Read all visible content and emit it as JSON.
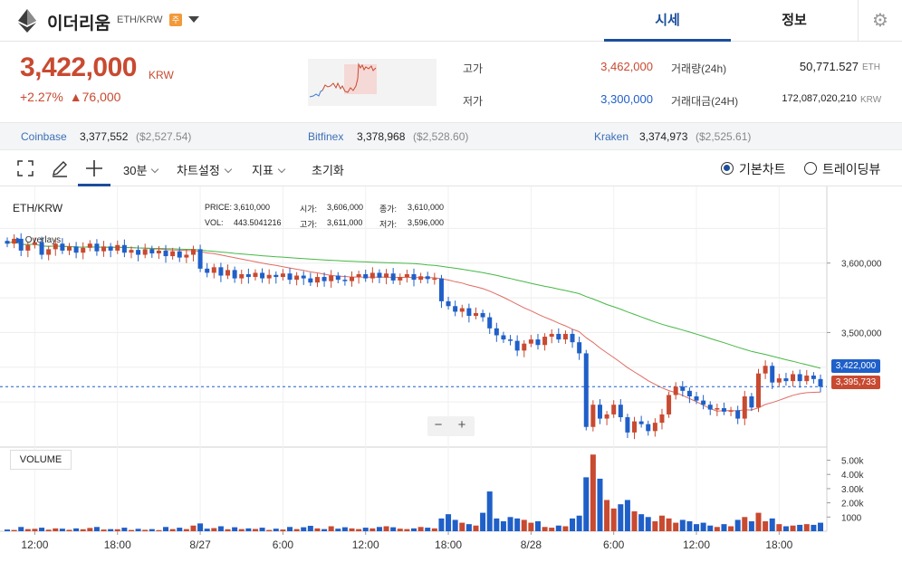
{
  "header": {
    "coin_name": "이더리움",
    "pair": "ETH/KRW",
    "badge": "주",
    "tabs": [
      {
        "label": "시세"
      },
      {
        "label": "정보"
      }
    ]
  },
  "summary": {
    "price": "3,422,000",
    "price_unit": "KRW",
    "change_pct": "+2.27%",
    "change_abs": "▲76,000",
    "high_label": "고가",
    "high_value": "3,462,000",
    "low_label": "저가",
    "low_value": "3,300,000",
    "volume_label": "거래량(24h)",
    "volume_value": "50,771.527",
    "volume_unit": "ETH",
    "amount_label": "거래대금(24H)",
    "amount_value": "172,087,020,210",
    "amount_unit": "KRW"
  },
  "exchanges": [
    {
      "name": "Coinbase",
      "krw": "3,377,552",
      "usd": "($2,527.54)"
    },
    {
      "name": "Bitfinex",
      "krw": "3,378,968",
      "usd": "($2,528.60)"
    },
    {
      "name": "Kraken",
      "krw": "3,374,973",
      "usd": "($2,525.61)"
    }
  ],
  "toolbar": {
    "interval": "30분",
    "chart_settings": "차트설정",
    "indicators": "지표",
    "reset": "초기화",
    "basic_chart": "기본차트",
    "tradingview": "트레이딩뷰"
  },
  "icons": {
    "logo": "ethereum-icon",
    "settings": "gear-icon",
    "fullscreen": "fullscreen-icon",
    "draw": "pencil-icon",
    "crosshair": "crosshair-icon"
  },
  "colors": {
    "up": "#c84a31",
    "down": "#1f5fc8",
    "accent": "#1b4e9b",
    "ma_short": "#e06b63",
    "ma_long": "#45b845"
  },
  "chart_legend": {
    "pair": "ETH/KRW",
    "overlays": "Overlays",
    "price_label": "PRICE:",
    "price_value": "3,610,000",
    "vol_label": "VOL:",
    "vol_value": "443.5041216",
    "open_label": "시가:",
    "open_value": "3,606,000",
    "close_label": "종가:",
    "close_value": "3,610,000",
    "high_label": "고가:",
    "high_value": "3,611,000",
    "low_label": "저가:",
    "low_value": "3,596,000",
    "zoom_out": "−",
    "zoom_in": "+",
    "volume": "VOLUME",
    "current_price": "3,422,000",
    "ma_price": "3,395,733"
  },
  "chart_data": {
    "type": "candlestick",
    "price_ticks": [
      "3,600,000",
      "3,500,000"
    ],
    "volume_ticks": [
      "5.00k",
      "4.00k",
      "3.00k",
      "2.00k",
      "1000"
    ],
    "x_ticks": [
      "12:00",
      "18:00",
      "8/27",
      "6:00",
      "12:00",
      "18:00",
      "8/28",
      "6:00",
      "12:00",
      "18:00"
    ],
    "price_ylim": [
      3335000,
      3700000
    ],
    "volume_ylim": [
      0,
      5800
    ],
    "grid": true,
    "bar_interval": "30분",
    "candles": [
      {
        "o": 3632000,
        "c": 3628000,
        "v": 120
      },
      {
        "o": 3628000,
        "c": 3635000,
        "v": 90
      },
      {
        "o": 3635000,
        "c": 3618000,
        "v": 300
      },
      {
        "o": 3618000,
        "c": 3626000,
        "v": 150
      },
      {
        "o": 3626000,
        "c": 3630000,
        "v": 170
      },
      {
        "o": 3630000,
        "c": 3612000,
        "v": 250
      },
      {
        "o": 3612000,
        "c": 3620000,
        "v": 110
      },
      {
        "o": 3620000,
        "c": 3628000,
        "v": 200
      },
      {
        "o": 3628000,
        "c": 3618000,
        "v": 180
      },
      {
        "o": 3618000,
        "c": 3624000,
        "v": 100
      },
      {
        "o": 3624000,
        "c": 3615000,
        "v": 200
      },
      {
        "o": 3615000,
        "c": 3622000,
        "v": 140
      },
      {
        "o": 3622000,
        "c": 3628000,
        "v": 230
      },
      {
        "o": 3628000,
        "c": 3617000,
        "v": 300
      },
      {
        "o": 3617000,
        "c": 3624000,
        "v": 120
      },
      {
        "o": 3624000,
        "c": 3618000,
        "v": 150
      },
      {
        "o": 3618000,
        "c": 3626000,
        "v": 140
      },
      {
        "o": 3626000,
        "c": 3615000,
        "v": 250
      },
      {
        "o": 3615000,
        "c": 3619000,
        "v": 90
      },
      {
        "o": 3619000,
        "c": 3612000,
        "v": 170
      },
      {
        "o": 3612000,
        "c": 3620000,
        "v": 100
      },
      {
        "o": 3620000,
        "c": 3614000,
        "v": 150
      },
      {
        "o": 3614000,
        "c": 3618000,
        "v": 80
      },
      {
        "o": 3618000,
        "c": 3610000,
        "v": 300
      },
      {
        "o": 3610000,
        "c": 3617000,
        "v": 150
      },
      {
        "o": 3617000,
        "c": 3608000,
        "v": 250
      },
      {
        "o": 3608000,
        "c": 3612000,
        "v": 150
      },
      {
        "o": 3612000,
        "c": 3620000,
        "v": 400
      },
      {
        "o": 3620000,
        "c": 3592000,
        "v": 550
      },
      {
        "o": 3592000,
        "c": 3586000,
        "v": 180
      },
      {
        "o": 3586000,
        "c": 3594000,
        "v": 220
      },
      {
        "o": 3594000,
        "c": 3582000,
        "v": 350
      },
      {
        "o": 3582000,
        "c": 3590000,
        "v": 140
      },
      {
        "o": 3590000,
        "c": 3578000,
        "v": 280
      },
      {
        "o": 3578000,
        "c": 3584000,
        "v": 150
      },
      {
        "o": 3584000,
        "c": 3580000,
        "v": 200
      },
      {
        "o": 3580000,
        "c": 3586000,
        "v": 160
      },
      {
        "o": 3586000,
        "c": 3578000,
        "v": 250
      },
      {
        "o": 3578000,
        "c": 3583000,
        "v": 90
      },
      {
        "o": 3583000,
        "c": 3580000,
        "v": 180
      },
      {
        "o": 3580000,
        "c": 3585000,
        "v": 120
      },
      {
        "o": 3585000,
        "c": 3576000,
        "v": 300
      },
      {
        "o": 3576000,
        "c": 3582000,
        "v": 150
      },
      {
        "o": 3582000,
        "c": 3578000,
        "v": 280
      },
      {
        "o": 3578000,
        "c": 3572000,
        "v": 380
      },
      {
        "o": 3572000,
        "c": 3580000,
        "v": 200
      },
      {
        "o": 3580000,
        "c": 3574000,
        "v": 150
      },
      {
        "o": 3574000,
        "c": 3582000,
        "v": 350
      },
      {
        "o": 3582000,
        "c": 3576000,
        "v": 180
      },
      {
        "o": 3576000,
        "c": 3574000,
        "v": 280
      },
      {
        "o": 3574000,
        "c": 3580000,
        "v": 200
      },
      {
        "o": 3580000,
        "c": 3584000,
        "v": 150
      },
      {
        "o": 3584000,
        "c": 3578000,
        "v": 250
      },
      {
        "o": 3578000,
        "c": 3586000,
        "v": 200
      },
      {
        "o": 3586000,
        "c": 3579000,
        "v": 300
      },
      {
        "o": 3579000,
        "c": 3585000,
        "v": 350
      },
      {
        "o": 3585000,
        "c": 3575000,
        "v": 280
      },
      {
        "o": 3575000,
        "c": 3580000,
        "v": 180
      },
      {
        "o": 3580000,
        "c": 3584000,
        "v": 150
      },
      {
        "o": 3584000,
        "c": 3576000,
        "v": 200
      },
      {
        "o": 3576000,
        "c": 3581000,
        "v": 300
      },
      {
        "o": 3581000,
        "c": 3577000,
        "v": 250
      },
      {
        "o": 3577000,
        "c": 3578000,
        "v": 200
      },
      {
        "o": 3578000,
        "c": 3545000,
        "v": 900
      },
      {
        "o": 3545000,
        "c": 3538000,
        "v": 1200
      },
      {
        "o": 3538000,
        "c": 3530000,
        "v": 800
      },
      {
        "o": 3530000,
        "c": 3535000,
        "v": 600
      },
      {
        "o": 3535000,
        "c": 3524000,
        "v": 500
      },
      {
        "o": 3524000,
        "c": 3528000,
        "v": 400
      },
      {
        "o": 3528000,
        "c": 3522000,
        "v": 1300
      },
      {
        "o": 3522000,
        "c": 3506000,
        "v": 2800
      },
      {
        "o": 3506000,
        "c": 3496000,
        "v": 900
      },
      {
        "o": 3496000,
        "c": 3490000,
        "v": 700
      },
      {
        "o": 3490000,
        "c": 3488000,
        "v": 1000
      },
      {
        "o": 3488000,
        "c": 3474000,
        "v": 900
      },
      {
        "o": 3474000,
        "c": 3484000,
        "v": 800
      },
      {
        "o": 3484000,
        "c": 3490000,
        "v": 600
      },
      {
        "o": 3490000,
        "c": 3482000,
        "v": 700
      },
      {
        "o": 3482000,
        "c": 3494000,
        "v": 300
      },
      {
        "o": 3494000,
        "c": 3498000,
        "v": 250
      },
      {
        "o": 3498000,
        "c": 3490000,
        "v": 400
      },
      {
        "o": 3490000,
        "c": 3498000,
        "v": 350
      },
      {
        "o": 3498000,
        "c": 3486000,
        "v": 900
      },
      {
        "o": 3486000,
        "c": 3470000,
        "v": 1100
      },
      {
        "o": 3470000,
        "c": 3364000,
        "v": 3800
      },
      {
        "o": 3364000,
        "c": 3396000,
        "v": 5400
      },
      {
        "o": 3396000,
        "c": 3376000,
        "v": 3700
      },
      {
        "o": 3376000,
        "c": 3382000,
        "v": 2200
      },
      {
        "o": 3382000,
        "c": 3396000,
        "v": 1600
      },
      {
        "o": 3396000,
        "c": 3378000,
        "v": 1900
      },
      {
        "o": 3378000,
        "c": 3356000,
        "v": 2200
      },
      {
        "o": 3356000,
        "c": 3372000,
        "v": 1400
      },
      {
        "o": 3372000,
        "c": 3368000,
        "v": 1200
      },
      {
        "o": 3368000,
        "c": 3358000,
        "v": 1000
      },
      {
        "o": 3358000,
        "c": 3370000,
        "v": 700
      },
      {
        "o": 3370000,
        "c": 3382000,
        "v": 1100
      },
      {
        "o": 3382000,
        "c": 3410000,
        "v": 900
      },
      {
        "o": 3410000,
        "c": 3422000,
        "v": 600
      },
      {
        "o": 3422000,
        "c": 3416000,
        "v": 800
      },
      {
        "o": 3416000,
        "c": 3408000,
        "v": 700
      },
      {
        "o": 3408000,
        "c": 3402000,
        "v": 500
      },
      {
        "o": 3402000,
        "c": 3396000,
        "v": 600
      },
      {
        "o": 3396000,
        "c": 3389000,
        "v": 400
      },
      {
        "o": 3389000,
        "c": 3391000,
        "v": 300
      },
      {
        "o": 3391000,
        "c": 3386000,
        "v": 500
      },
      {
        "o": 3386000,
        "c": 3388000,
        "v": 350
      },
      {
        "o": 3388000,
        "c": 3376000,
        "v": 800
      },
      {
        "o": 3376000,
        "c": 3408000,
        "v": 1000
      },
      {
        "o": 3408000,
        "c": 3392000,
        "v": 700
      },
      {
        "o": 3392000,
        "c": 3441000,
        "v": 1300
      },
      {
        "o": 3441000,
        "c": 3452000,
        "v": 700
      },
      {
        "o": 3452000,
        "c": 3428000,
        "v": 900
      },
      {
        "o": 3428000,
        "c": 3434000,
        "v": 500
      },
      {
        "o": 3434000,
        "c": 3430000,
        "v": 350
      },
      {
        "o": 3430000,
        "c": 3440000,
        "v": 400
      },
      {
        "o": 3440000,
        "c": 3430000,
        "v": 450
      },
      {
        "o": 3430000,
        "c": 3438000,
        "v": 500
      },
      {
        "o": 3438000,
        "c": 3433000,
        "v": 450
      },
      {
        "o": 3433000,
        "c": 3422000,
        "v": 600
      }
    ]
  }
}
